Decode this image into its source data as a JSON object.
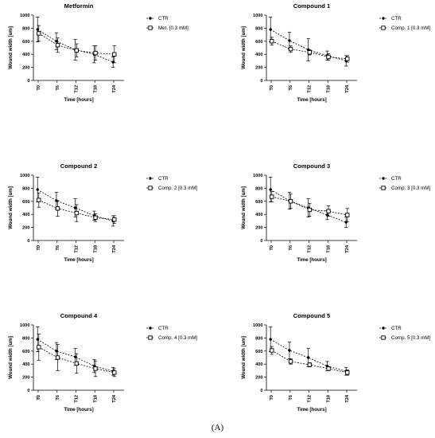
{
  "figure_label": "(A)",
  "chart_data": [
    {
      "type": "line",
      "title": "Metformin",
      "xlabel": "Time [hours]",
      "ylabel": "Wound width [um]",
      "categories": [
        "T0",
        "T6",
        "T12",
        "T18",
        "T24"
      ],
      "ylim": [
        0,
        1000
      ],
      "yticks": [
        0,
        200,
        400,
        600,
        800,
        1000
      ],
      "series": [
        {
          "name": "CTR",
          "marker": "dot",
          "values": [
            780,
            600,
            470,
            400,
            280
          ],
          "errors": [
            190,
            130,
            160,
            130,
            80
          ]
        },
        {
          "name": "Met. [0.3 mM]",
          "marker": "square",
          "values": [
            720,
            540,
            460,
            420,
            400
          ],
          "errors": [
            120,
            110,
            100,
            110,
            130
          ]
        }
      ]
    },
    {
      "type": "line",
      "title": "Compound 1",
      "xlabel": "Time [hours]",
      "ylabel": "Wound width [um]",
      "categories": [
        "T0",
        "T6",
        "T12",
        "T18",
        "T24"
      ],
      "ylim": [
        0,
        1000
      ],
      "yticks": [
        0,
        200,
        400,
        600,
        800,
        1000
      ],
      "series": [
        {
          "name": "CTR",
          "marker": "dot",
          "values": [
            780,
            610,
            470,
            380,
            300
          ],
          "errors": [
            190,
            130,
            170,
            70,
            80
          ]
        },
        {
          "name": "Comp. 1 [0.3 mM]",
          "marker": "square",
          "values": [
            600,
            480,
            430,
            360,
            330
          ],
          "errors": [
            60,
            50,
            40,
            50,
            50
          ]
        }
      ]
    },
    {
      "type": "line",
      "title": "Compound 2",
      "xlabel": "Time [hours]",
      "ylabel": "Wound width [um]",
      "categories": [
        "T0",
        "T6",
        "T12",
        "T18",
        "T24"
      ],
      "ylim": [
        0,
        1000
      ],
      "yticks": [
        0,
        200,
        400,
        600,
        800,
        1000
      ],
      "series": [
        {
          "name": "CTR",
          "marker": "dot",
          "values": [
            780,
            610,
            500,
            380,
            300
          ],
          "errors": [
            190,
            130,
            140,
            70,
            80
          ]
        },
        {
          "name": "Comp. 2 [0.3 mM]",
          "marker": "square",
          "values": [
            620,
            490,
            420,
            350,
            320
          ],
          "errors": [
            110,
            120,
            130,
            60,
            60
          ]
        }
      ]
    },
    {
      "type": "line",
      "title": "Compound 3",
      "xlabel": "Time [hours]",
      "ylabel": "Wound width [um]",
      "categories": [
        "T0",
        "T6",
        "T12",
        "T18",
        "T24"
      ],
      "ylim": [
        0,
        1000
      ],
      "yticks": [
        0,
        200,
        400,
        600,
        800,
        1000
      ],
      "series": [
        {
          "name": "CTR",
          "marker": "dot",
          "values": [
            780,
            610,
            500,
            390,
            280
          ],
          "errors": [
            190,
            130,
            140,
            70,
            80
          ]
        },
        {
          "name": "Comp. 3 [0.3 mM]",
          "marker": "square",
          "values": [
            670,
            600,
            470,
            450,
            390
          ],
          "errors": [
            80,
            110,
            100,
            80,
            100
          ]
        }
      ]
    },
    {
      "type": "line",
      "title": "Compound 4",
      "xlabel": "Time [hours]",
      "ylabel": "Wound width [um]",
      "categories": [
        "T0",
        "T6",
        "T12",
        "T18",
        "T24"
      ],
      "ylim": [
        0,
        1000
      ],
      "yticks": [
        0,
        200,
        400,
        600,
        800,
        1000
      ],
      "series": [
        {
          "name": "CTR",
          "marker": "dot",
          "values": [
            780,
            600,
            510,
            370,
            290
          ],
          "errors": [
            190,
            130,
            130,
            100,
            60
          ]
        },
        {
          "name": "Comp. 4 [0.3 mM]",
          "marker": "square",
          "values": [
            660,
            500,
            410,
            330,
            270
          ],
          "errors": [
            200,
            200,
            150,
            120,
            60
          ]
        }
      ]
    },
    {
      "type": "line",
      "title": "Compound 5",
      "xlabel": "Time [hours]",
      "ylabel": "Wound width [um]",
      "categories": [
        "T0",
        "T6",
        "T12",
        "T18",
        "T24"
      ],
      "ylim": [
        0,
        1000
      ],
      "yticks": [
        0,
        200,
        400,
        600,
        800,
        1000
      ],
      "series": [
        {
          "name": "CTR",
          "marker": "dot",
          "values": [
            780,
            610,
            500,
            370,
            290
          ],
          "errors": [
            190,
            130,
            140,
            70,
            60
          ]
        },
        {
          "name": "Comp. 5 [0.3 mM]",
          "marker": "square",
          "values": [
            610,
            440,
            390,
            330,
            270
          ],
          "errors": [
            60,
            40,
            30,
            30,
            40
          ]
        }
      ]
    }
  ]
}
